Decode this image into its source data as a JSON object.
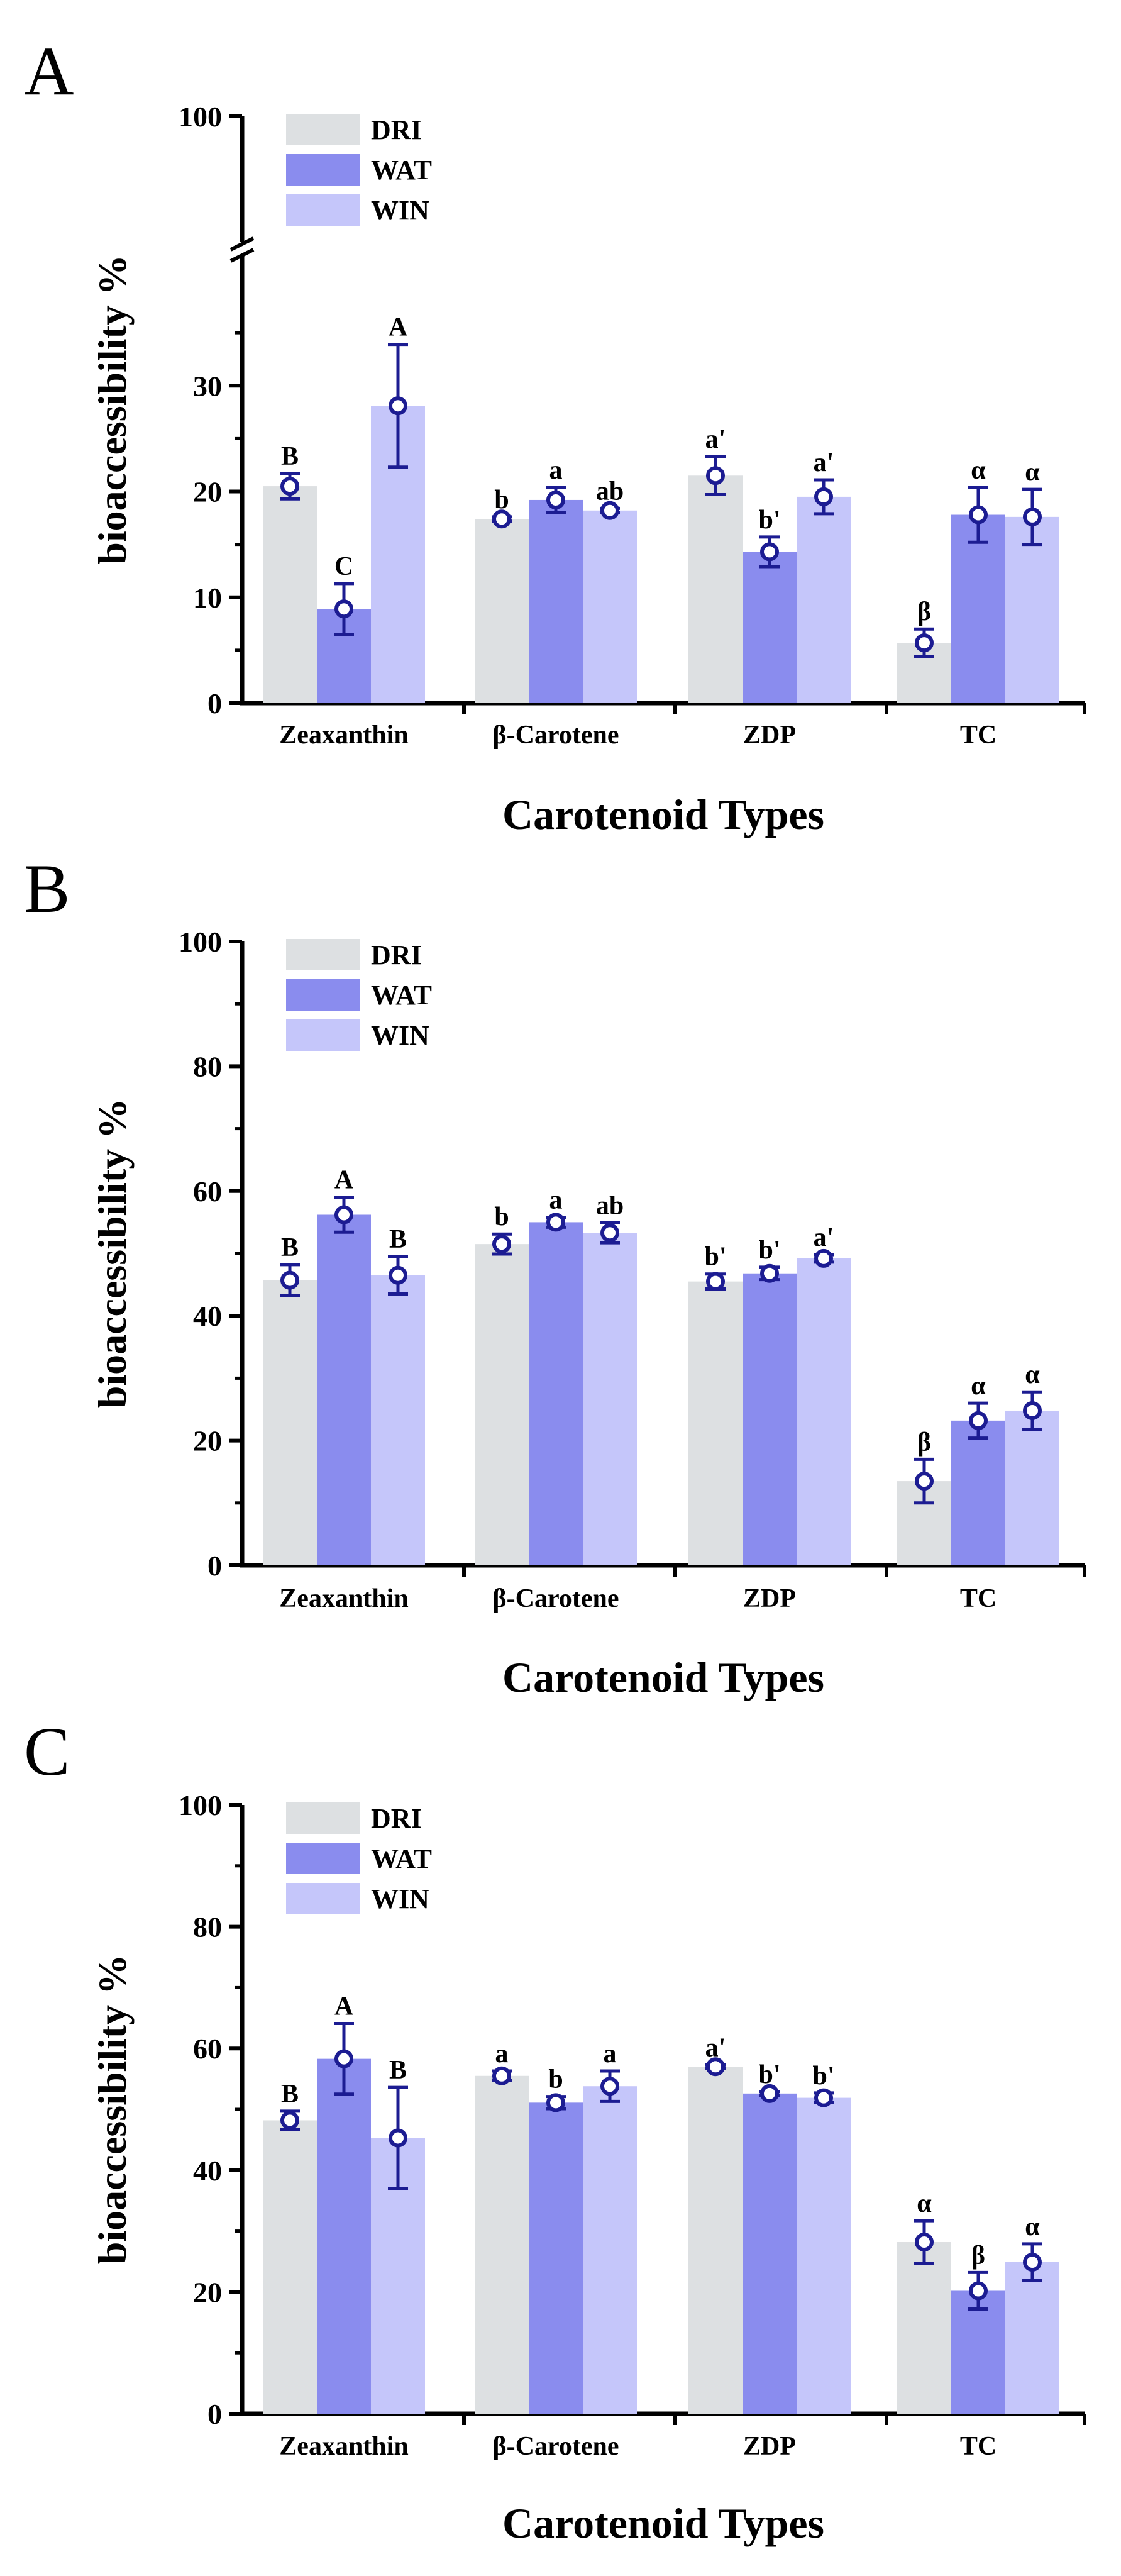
{
  "colors": {
    "DRI": "#dde0e2",
    "WAT": "#8a8cee",
    "WIN": "#c5c6fa",
    "marker": "#1c1c92",
    "axis": "#000000"
  },
  "chart_data": [
    {
      "panel": "A",
      "type": "bar",
      "xlabel": "Carotenoid Types",
      "ylabel": "bioaccessibility %",
      "ylim": [
        0,
        100
      ],
      "axis_break": [
        40,
        95
      ],
      "yticks": [
        0,
        10,
        20,
        30,
        100
      ],
      "categories": [
        "Zeaxanthin",
        "β-Carotene",
        "ZDP",
        "TC"
      ],
      "legend_position": "top-left",
      "series": [
        {
          "name": "DRI",
          "values": [
            20.5,
            17.4,
            21.5,
            5.7
          ],
          "errors": [
            1.2,
            0.2,
            1.8,
            1.3
          ],
          "labels": [
            "B",
            "b",
            "a'",
            "β"
          ]
        },
        {
          "name": "WAT",
          "values": [
            8.9,
            19.2,
            14.3,
            17.8
          ],
          "errors": [
            2.4,
            1.2,
            1.4,
            2.6
          ],
          "labels": [
            "C",
            "a",
            "b'",
            "α"
          ]
        },
        {
          "name": "WIN",
          "values": [
            28.1,
            18.2,
            19.5,
            17.6
          ],
          "errors": [
            5.8,
            0.2,
            1.6,
            2.6
          ],
          "labels": [
            "A",
            "ab",
            "a'",
            "α"
          ]
        }
      ]
    },
    {
      "panel": "B",
      "type": "bar",
      "xlabel": "Carotenoid Types",
      "ylabel": "bioaccessibility %",
      "ylim": [
        0,
        100
      ],
      "yticks": [
        0,
        20,
        40,
        60,
        80,
        100
      ],
      "categories": [
        "Zeaxanthin",
        "β-Carotene",
        "ZDP",
        "TC"
      ],
      "legend_position": "top-left",
      "series": [
        {
          "name": "DRI",
          "values": [
            45.7,
            51.5,
            45.5,
            13.5
          ],
          "errors": [
            2.5,
            1.6,
            1.2,
            3.5
          ],
          "labels": [
            "B",
            "b",
            "b'",
            "β"
          ]
        },
        {
          "name": "WAT",
          "values": [
            56.2,
            55.0,
            46.8,
            23.2
          ],
          "errors": [
            2.8,
            0.8,
            1.0,
            2.8
          ],
          "labels": [
            "A",
            "a",
            "b'",
            "α"
          ]
        },
        {
          "name": "WIN",
          "values": [
            46.5,
            53.3,
            49.2,
            24.8
          ],
          "errors": [
            3.0,
            1.6,
            0.6,
            3.0
          ],
          "labels": [
            "B",
            "ab",
            "a'",
            "α"
          ]
        }
      ]
    },
    {
      "panel": "C",
      "type": "bar",
      "xlabel": "Carotenoid Types",
      "ylabel": "bioaccessibility %",
      "ylim": [
        0,
        100
      ],
      "yticks": [
        0,
        20,
        40,
        60,
        80,
        100
      ],
      "categories": [
        "Zeaxanthin",
        "β-Carotene",
        "ZDP",
        "TC"
      ],
      "legend_position": "top-left",
      "series": [
        {
          "name": "DRI",
          "values": [
            48.2,
            55.5,
            57.0,
            28.2
          ],
          "errors": [
            1.5,
            0.8,
            0.3,
            3.5
          ],
          "labels": [
            "B",
            "a",
            "a'",
            "α"
          ]
        },
        {
          "name": "WAT",
          "values": [
            58.3,
            51.1,
            52.6,
            20.2
          ],
          "errors": [
            5.8,
            1.0,
            0.3,
            3.0
          ],
          "labels": [
            "A",
            "b",
            "b'",
            "β"
          ]
        },
        {
          "name": "WIN",
          "values": [
            45.3,
            53.8,
            51.9,
            24.9
          ],
          "errors": [
            8.3,
            2.5,
            0.8,
            3.0
          ],
          "labels": [
            "B",
            "a",
            "b'",
            "α"
          ]
        }
      ]
    }
  ]
}
